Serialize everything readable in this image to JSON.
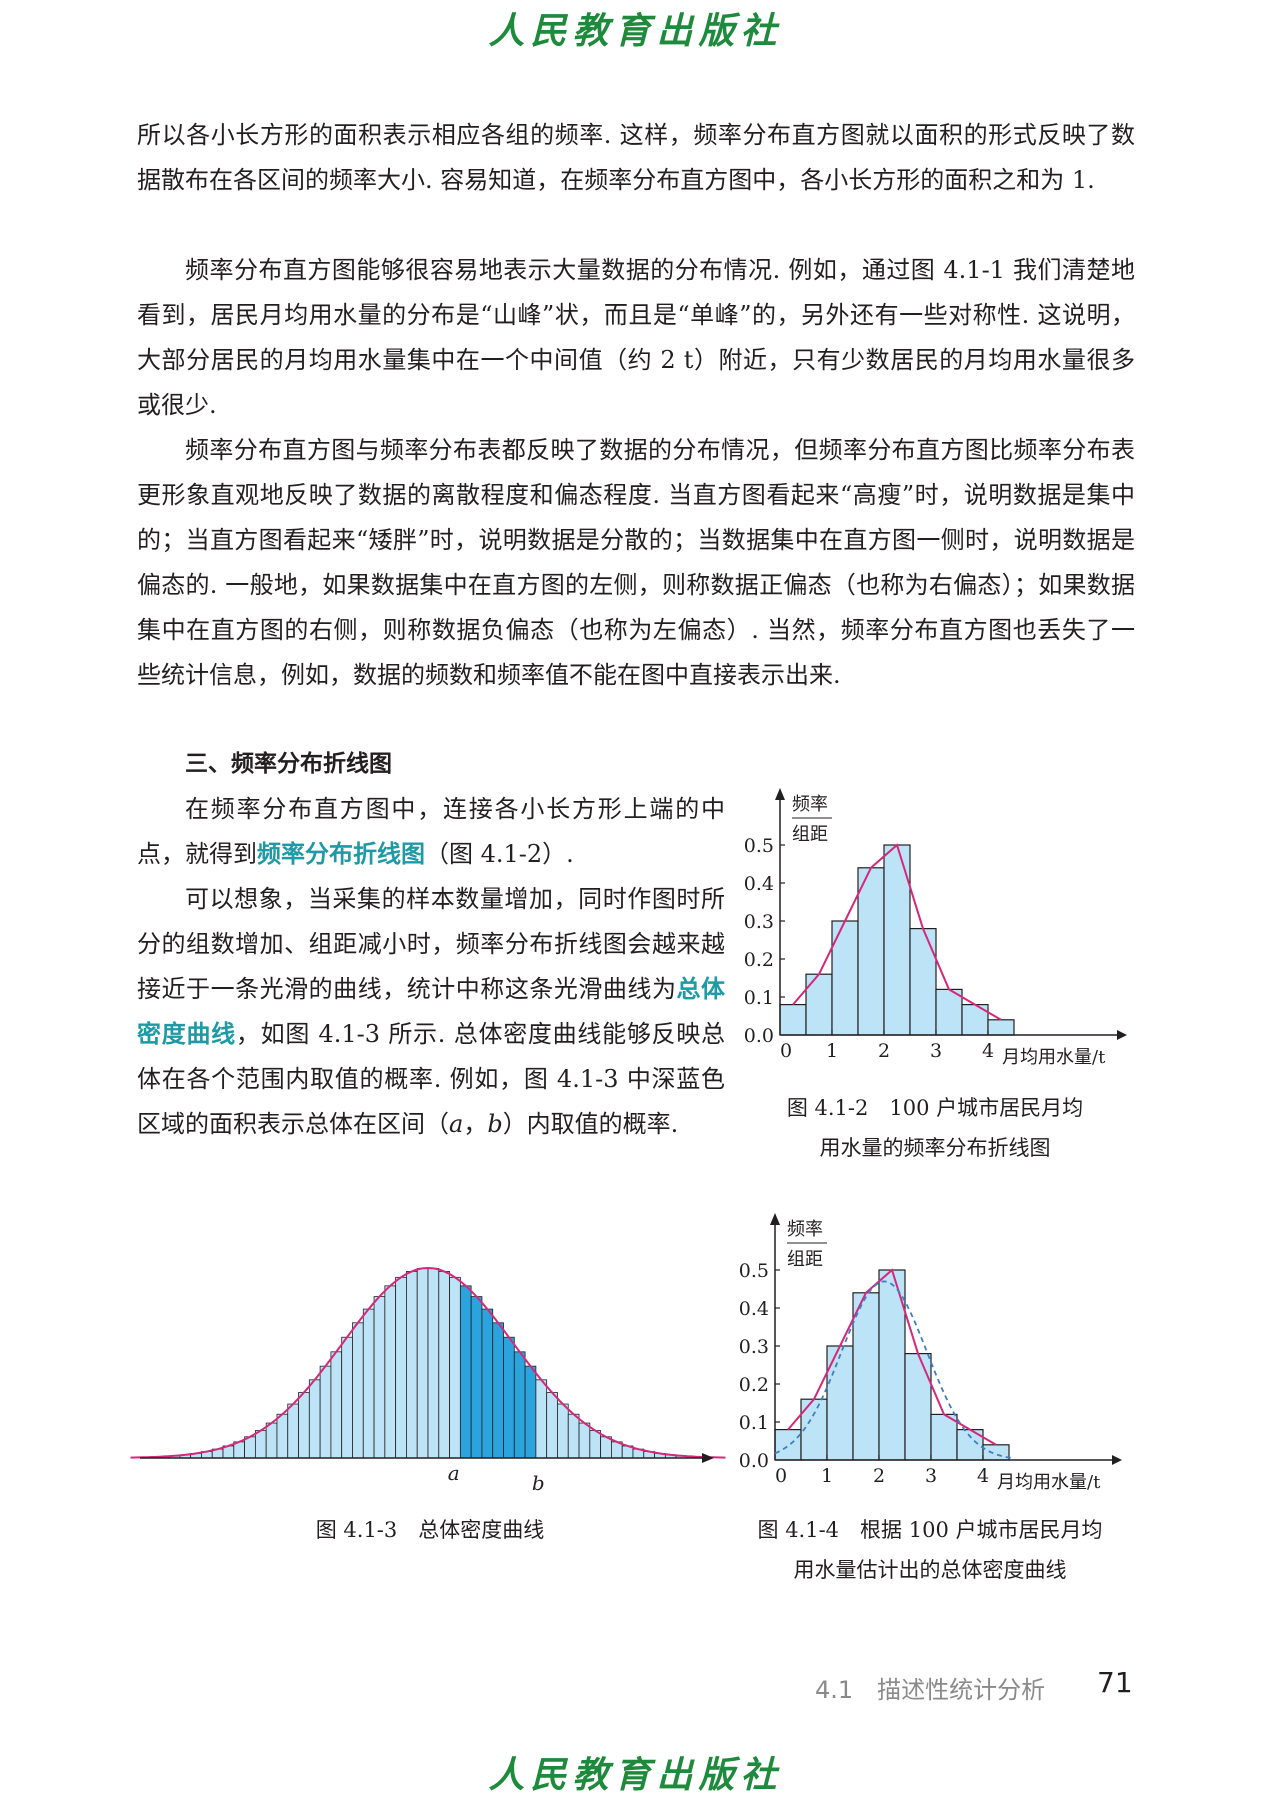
{
  "publisher_logo": "人民教育出版社",
  "paragraphs": [
    "所以各小长方形的面积表示相应各组的频率. 这样，频率分布直方图就以面积的形式反映了数据散布在各区间的频率大小. 容易知道，在频率分布直方图中，各小长方形的面积之和为 1.",
    "频率分布直方图能够很容易地表示大量数据的分布情况. 例如，通过图 4.1-1 我们清楚地看到，居民月均用水量的分布是“山峰”状，而且是“单峰”的，另外还有一些对称性. 这说明，大部分居民的月均用水量集中在一个中间值（约 2 t）附近，只有少数居民的月均用水量很多或很少.",
    "频率分布直方图与频率分布表都反映了数据的分布情况，但频率分布直方图比频率分布表更形象直观地反映了数据的离散程度和偏态程度. 当直方图看起来“高瘦”时，说明数据是集中的；当直方图看起来“矮胖”时，说明数据是分散的；当数据集中在直方图一侧时，说明数据是偏态的. 一般地，如果数据集中在直方图的左侧，则称数据正偏态（也称为右偏态）；如果数据集中在直方图的右侧，则称数据负偏态（也称为左偏态）. 当然，频率分布直方图也丢失了一些统计信息，例如，数据的频数和频率值不能在图中直接表示出来."
  ],
  "section_heading": "三、频率分布折线图",
  "side_text": {
    "p1_before": "在频率分布直方图中，连接各小长方形上端的中点，就得到",
    "p1_term": "频率分布折线图",
    "p1_after": "（图 4.1-2）.",
    "p2_before": "可以想象，当采集的样本数量增加，同时作图时所分的组数增加、组距减小时，频率分布折线图会越来越接近于一条光滑的曲线，统计中称这条光滑曲线为",
    "p2_term": "总体密度曲线",
    "p2_after": "，如图 4.1-3 所示. 总体密度曲线能够反映总体在各个范围内取值的概率. 例如，图 4.1-3 中深蓝色区域的面积表示总体在区间（",
    "p2_var_a": "a",
    "p2_comma": "，",
    "p2_var_b": "b",
    "p2_end": "）内取值的概率."
  },
  "chart_data": [
    {
      "id": "fig-4.1-2",
      "type": "bar",
      "overlay": "frequency polygon through bar top midpoints",
      "bin_edges": [
        0,
        0.5,
        1,
        1.5,
        2,
        2.5,
        3,
        3.5,
        4,
        4.5
      ],
      "values": [
        0.08,
        0.16,
        0.3,
        0.44,
        0.5,
        0.28,
        0.12,
        0.08,
        0.04
      ],
      "ylabel_top": "频率",
      "ylabel_bottom": "组距",
      "xlabel": "月均用水量/t",
      "x_ticks": [
        "0",
        "1",
        "2",
        "3",
        "4"
      ],
      "y_ticks": [
        "0.0",
        "0.1",
        "0.2",
        "0.3",
        "0.4",
        "0.5"
      ],
      "xlim": [
        0,
        5
      ],
      "ylim": [
        0,
        0.55
      ],
      "colors": {
        "bar": "#bde3f7",
        "polygon": "#d6287a",
        "axis": "#231f20"
      },
      "caption_line1": "图 4.1-2　100 户城市居民月均",
      "caption_line2": "用水量的频率分布折线图"
    },
    {
      "id": "fig-4.1-3",
      "type": "bar",
      "description_shape": "normal density curve over many narrow bars",
      "mean": 0,
      "sd": 1,
      "bar_count": 52,
      "shaded_interval_label_a": "a",
      "shaded_interval_label_b": "b",
      "colors": {
        "bar": "#bde3f7",
        "shaded": "#2ba3dd",
        "curve": "#d6287a"
      },
      "caption": "图 4.1-3　总体密度曲线"
    },
    {
      "id": "fig-4.1-4",
      "type": "bar",
      "overlay": "frequency polygon and dashed estimated density curve",
      "bin_edges": [
        0,
        0.5,
        1,
        1.5,
        2,
        2.5,
        3,
        3.5,
        4,
        4.5
      ],
      "values": [
        0.08,
        0.16,
        0.3,
        0.44,
        0.5,
        0.28,
        0.12,
        0.08,
        0.04
      ],
      "ylabel_top": "频率",
      "ylabel_bottom": "组距",
      "xlabel": "月均用水量/t",
      "x_ticks": [
        "0",
        "1",
        "2",
        "3",
        "4"
      ],
      "y_ticks": [
        "0.0",
        "0.1",
        "0.2",
        "0.3",
        "0.4",
        "0.5"
      ],
      "xlim": [
        0,
        5
      ],
      "ylim": [
        0,
        0.55
      ],
      "colors": {
        "bar": "#bde3f7",
        "polygon": "#d6287a",
        "density": "#3b7fc4"
      },
      "caption_line1": "图 4.1-4　根据 100 户城市居民月均",
      "caption_line2": "用水量估计出的总体密度曲线"
    }
  ],
  "footer": {
    "section": "4.1　描述性统计分析",
    "page_number": "71"
  }
}
